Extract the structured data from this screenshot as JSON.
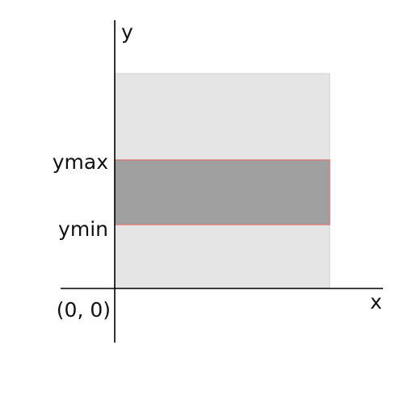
{
  "diagram": {
    "labels": {
      "y_axis": "y",
      "x_axis": "x",
      "ymax": "ymax",
      "ymin": "ymin",
      "origin": "(0, 0)"
    },
    "colors": {
      "background_area": "#e5e5e5",
      "background_border": "#d2d2d2",
      "band_fill": "#a0a0a0",
      "band_border": "#d97070",
      "axis": "#000000"
    }
  }
}
